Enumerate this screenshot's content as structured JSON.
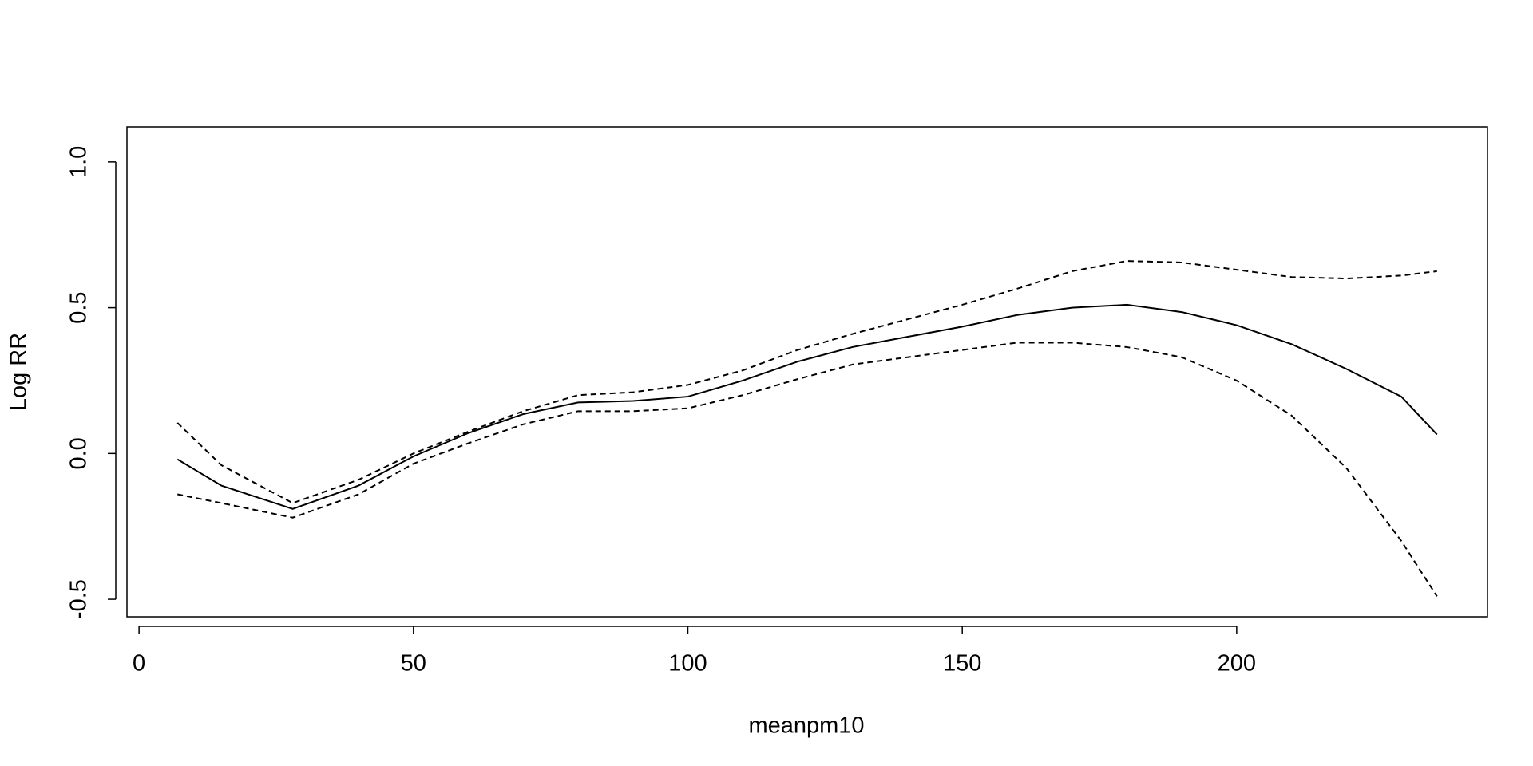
{
  "chart_data": {
    "type": "line",
    "x_label": "meanpm10",
    "y_label": "Log RR",
    "x": [
      7,
      15,
      28,
      40,
      50,
      60,
      70,
      80,
      90,
      100,
      110,
      120,
      130,
      140,
      150,
      160,
      170,
      180,
      190,
      200,
      210,
      220,
      230,
      236.5
    ],
    "series": [
      {
        "color": "#000000",
        "dash": false,
        "values": [
          -0.02,
          -0.11,
          -0.19,
          -0.11,
          -0.01,
          0.07,
          0.135,
          0.175,
          0.18,
          0.195,
          0.25,
          0.315,
          0.365,
          0.4,
          0.435,
          0.475,
          0.5,
          0.51,
          0.485,
          0.44,
          0.375,
          0.29,
          0.195,
          0.065
        ]
      },
      {
        "color": "#000000",
        "dash": true,
        "values": [
          0.105,
          -0.04,
          -0.17,
          -0.09,
          0.0,
          0.075,
          0.145,
          0.2,
          0.21,
          0.235,
          0.285,
          0.355,
          0.41,
          0.46,
          0.51,
          0.565,
          0.625,
          0.66,
          0.655,
          0.63,
          0.605,
          0.6,
          0.61,
          0.625
        ]
      },
      {
        "color": "#000000",
        "dash": true,
        "values": [
          -0.14,
          -0.17,
          -0.22,
          -0.14,
          -0.035,
          0.035,
          0.1,
          0.145,
          0.145,
          0.155,
          0.2,
          0.255,
          0.305,
          0.33,
          0.355,
          0.38,
          0.38,
          0.365,
          0.33,
          0.25,
          0.13,
          -0.05,
          -0.3,
          -0.49
        ]
      }
    ],
    "xlim": [
      -2.2,
      245.7
    ],
    "ylim": [
      -0.56,
      1.12
    ],
    "xticks": [
      0,
      50,
      100,
      150,
      200
    ],
    "yticks": [
      -0.5,
      {
        "value": 0,
        "label": "0.0"
      },
      0.5,
      {
        "value": 1,
        "label": "1.0"
      }
    ]
  }
}
